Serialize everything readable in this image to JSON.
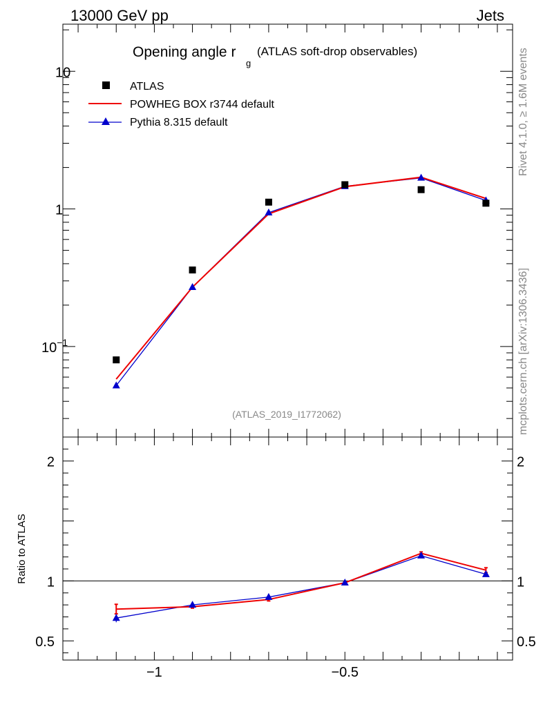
{
  "header": {
    "left": "13000 GeV pp",
    "right": "Jets"
  },
  "side": {
    "rivet": "Rivet 4.1.0, ≥ 1.6M events",
    "mcplots": "mcplots.cern.ch [arXiv:1306.3436]"
  },
  "chart_data": [
    {
      "type": "scatter",
      "title": "Opening angle r",
      "title_subscript": "g",
      "title_suffix": "(ATLAS soft-drop observables)",
      "watermark": "(ATLAS_2019_I1772062)",
      "yscale": "log",
      "ylim": [
        0.022,
        22
      ],
      "xlim": [
        -1.24,
        -0.06
      ],
      "y_ticks": [
        {
          "value": 0.1,
          "base": "10",
          "exp": "−1"
        },
        {
          "value": 1,
          "base": "1",
          "exp": ""
        },
        {
          "value": 10,
          "base": "10",
          "exp": ""
        }
      ],
      "legend": [
        {
          "name": "ATLAS",
          "style": "square-marker",
          "color": "#000000"
        },
        {
          "name": "POWHEG BOX r3744 default",
          "style": "line",
          "color": "#ee0000"
        },
        {
          "name": "Pythia 8.315 default",
          "style": "line-triangle",
          "color": "#0000cc"
        }
      ],
      "x": [
        -1.1,
        -0.9,
        -0.7,
        -0.5,
        -0.3,
        -0.13
      ],
      "series": [
        {
          "name": "ATLAS",
          "color": "#000000",
          "values": [
            0.08,
            0.36,
            1.12,
            1.5,
            1.38,
            1.1
          ]
        },
        {
          "name": "POWHEG BOX r3744 default",
          "color": "#ee0000",
          "values": [
            0.058,
            0.27,
            0.92,
            1.45,
            1.7,
            1.19
          ]
        },
        {
          "name": "Pythia 8.315 default",
          "color": "#0000cc",
          "values": [
            0.052,
            0.27,
            0.94,
            1.46,
            1.68,
            1.15
          ]
        }
      ]
    },
    {
      "type": "line",
      "ylabel": "Ratio to ATLAS",
      "ylim": [
        0.34,
        2.2
      ],
      "xlim": [
        -1.24,
        -0.06
      ],
      "xlabel": "",
      "x_tick_labels": [
        {
          "value": -1.0,
          "label": "−1"
        },
        {
          "value": -0.5,
          "label": "−0.5"
        }
      ],
      "y_tick_labels": [
        {
          "value": 0.5,
          "label": "0.5"
        },
        {
          "value": 1,
          "label": "1"
        },
        {
          "value": 2,
          "label": "2"
        }
      ],
      "x": [
        -1.1,
        -0.9,
        -0.7,
        -0.5,
        -0.3,
        -0.13
      ],
      "series": [
        {
          "name": "POWHEG BOX r3744 default",
          "color": "#ee0000",
          "values": [
            0.765,
            0.785,
            0.845,
            0.985,
            1.23,
            1.09
          ],
          "err": [
            0.04,
            0.012,
            0.012,
            0.008,
            0.012,
            0.02
          ]
        },
        {
          "name": "Pythia 8.315 default",
          "color": "#0000cc",
          "values": [
            0.69,
            0.8,
            0.865,
            0.985,
            1.21,
            1.055
          ],
          "err": [
            0.035,
            0.01,
            0.01,
            0.008,
            0.01,
            0.015
          ]
        }
      ]
    }
  ]
}
